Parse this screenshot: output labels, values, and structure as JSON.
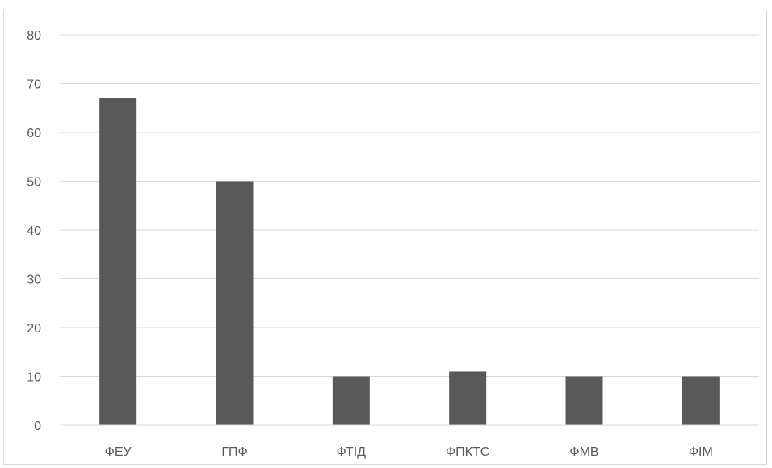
{
  "chart_data": {
    "type": "bar",
    "title": "",
    "xlabel": "",
    "ylabel": "",
    "categories": [
      "ФЕУ",
      "ГПФ",
      "ФТІД",
      "ФПКТС",
      "ФМВ",
      "ФІМ"
    ],
    "values": [
      67,
      50,
      10,
      11,
      10,
      10
    ],
    "ylim": [
      0,
      80
    ],
    "yticks": [
      0,
      10,
      20,
      30,
      40,
      50,
      60,
      70,
      80
    ],
    "grid": true,
    "legend": "none",
    "colors": {
      "bar": "#595959",
      "grid": "#d9d9d9",
      "axis": "#d9d9d9",
      "text": "#595959"
    }
  }
}
